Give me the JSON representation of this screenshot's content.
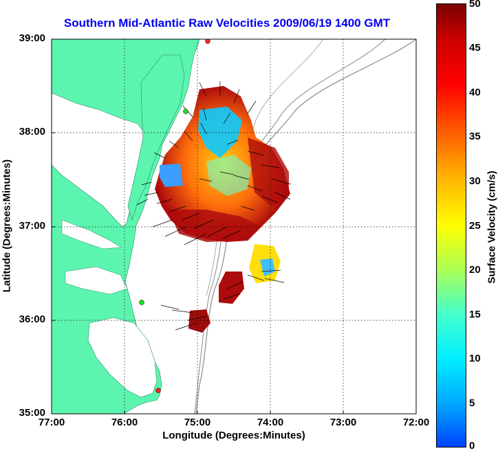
{
  "title": "Southern Mid-Atlantic Raw Velocities 2009/06/19 1400 GMT",
  "axes": {
    "xlabel": "Longitude (Degrees:Minutes)",
    "ylabel": "Latitude (Degrees:Minutes)",
    "xticks": [
      "77:00",
      "76:00",
      "75:00",
      "74:00",
      "73:00",
      "72:00"
    ],
    "yticks": [
      "39:00",
      "38:00",
      "37:00",
      "36:00",
      "35:00"
    ]
  },
  "colorbar": {
    "label": "Surface Velocity (cm/s)",
    "ticks": [
      "50",
      "45",
      "40",
      "35",
      "30",
      "25",
      "20",
      "15",
      "10",
      "5",
      "0"
    ],
    "range": [
      0,
      50
    ],
    "colormap": "jet"
  },
  "colors": {
    "land": "#5cf5b0",
    "ocean": "#ffffff",
    "title": "#0000ee",
    "station_marker_green": "#22dd22",
    "station_marker_red": "#ff2222"
  }
}
